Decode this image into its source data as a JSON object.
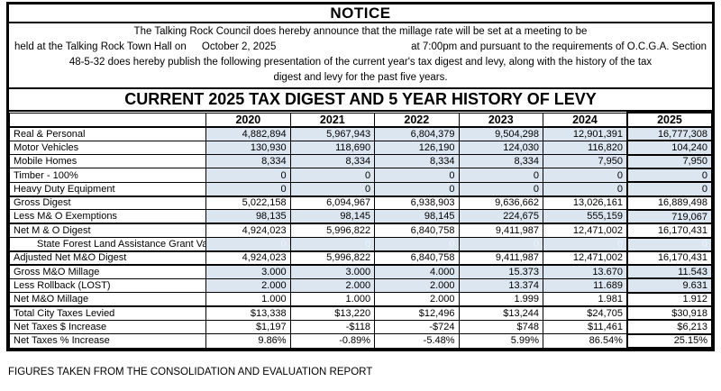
{
  "notice": {
    "title": "NOTICE"
  },
  "paragraph": {
    "line1": "The Talking Rock Council does hereby announce that the millage rate will be set at a meeting to be",
    "line2_left": "held at the Talking Rock Town Hall on",
    "line2_date": "October 2, 2025",
    "line2_right": "at 7:00pm and pursuant to the requirements of O.C.G.A. Section",
    "line3": "48-5-32 does hereby publish the following presentation of the current year's tax digest and levy, along with the history of the tax",
    "line4": "digest and levy for the past five years."
  },
  "table": {
    "title": "CURRENT 2025 TAX DIGEST AND 5 YEAR HISTORY OF LEVY",
    "columns": [
      "",
      "2020",
      "2021",
      "2022",
      "2023",
      "2024",
      "2025"
    ],
    "rows": [
      {
        "label": "Real & Personal",
        "values": [
          "4,882,894",
          "5,967,943",
          "6,804,379",
          "9,504,298",
          "12,901,391",
          "16,777,308"
        ],
        "shade": "blue"
      },
      {
        "label": "Motor Vehicles",
        "values": [
          "130,930",
          "118,690",
          "126,190",
          "124,030",
          "116,820",
          "104,240"
        ],
        "shade": "blue"
      },
      {
        "label": "Mobile Homes",
        "values": [
          "8,334",
          "8,334",
          "8,334",
          "8,334",
          "7,950",
          "7,950"
        ],
        "shade": "blue"
      },
      {
        "label": "Timber - 100%",
        "values": [
          "0",
          "0",
          "0",
          "0",
          "0",
          "0"
        ],
        "shade": "blue"
      },
      {
        "label": "Heavy Duty Equipment",
        "values": [
          "0",
          "0",
          "0",
          "0",
          "0",
          "0"
        ],
        "shade": "blue"
      },
      {
        "label": "Gross Digest",
        "values": [
          "5,022,158",
          "6,094,967",
          "6,938,903",
          "9,636,662",
          "13,026,161",
          "16,889,498"
        ],
        "shade": "white",
        "thick_top": true
      },
      {
        "label": "Less M& O Exemptions",
        "values": [
          "98,135",
          "98,145",
          "98,145",
          "224,675",
          "555,159",
          "719,067"
        ],
        "shade": "blue"
      },
      {
        "label": "Net M & O Digest",
        "values": [
          "4,924,023",
          "5,996,822",
          "6,840,758",
          "9,411,987",
          "12,471,002",
          "16,170,431"
        ],
        "shade": "white",
        "thick_top": true
      },
      {
        "label": "State Forest Land Assistance Grant Value",
        "values": [
          "0",
          "0",
          "0",
          "0",
          "0",
          "0"
        ],
        "shade": "blue",
        "faint": true,
        "indent": true
      },
      {
        "label": "Adjusted Net M&O Digest",
        "values": [
          "4,924,023",
          "5,996,822",
          "6,840,758",
          "9,411,987",
          "12,471,002",
          "16,170,431"
        ],
        "shade": "white",
        "thick_top": true
      },
      {
        "label": "Gross M&O Millage",
        "values": [
          "3.000",
          "3.000",
          "4.000",
          "15.373",
          "13.670",
          "11.543"
        ],
        "shade": "blue",
        "thick_top": true
      },
      {
        "label": "Less Rollback (LOST)",
        "values": [
          "2.000",
          "2.000",
          "2.000",
          "13.374",
          "11.689",
          "9.631"
        ],
        "shade": "blue"
      },
      {
        "label": "Net M&O Millage",
        "values": [
          "1.000",
          "1.000",
          "2.000",
          "1.999",
          "1.981",
          "1.912"
        ],
        "shade": "white"
      },
      {
        "label": "Total City Taxes Levied",
        "values": [
          "$13,338",
          "$13,220",
          "$12,496",
          "$13,244",
          "$24,705",
          "$30,918"
        ],
        "shade": "white",
        "thick_top": true
      },
      {
        "label": "Net Taxes $ Increase",
        "values": [
          "$1,197",
          "-$118",
          "-$724",
          "$748",
          "$11,461",
          "$6,213"
        ],
        "shade": "white"
      },
      {
        "label": "Net Taxes % Increase",
        "values": [
          "9.86%",
          "-0.89%",
          "-5.48%",
          "5.99%",
          "86.54%",
          "25.15%"
        ],
        "shade": "white"
      }
    ]
  },
  "footer": "FIGURES TAKEN FROM THE CONSOLIDATION AND EVALUATION REPORT",
  "colors": {
    "cell_fill": "#dce6f1",
    "border": "#000000",
    "faint_text": "#eef3fa"
  }
}
